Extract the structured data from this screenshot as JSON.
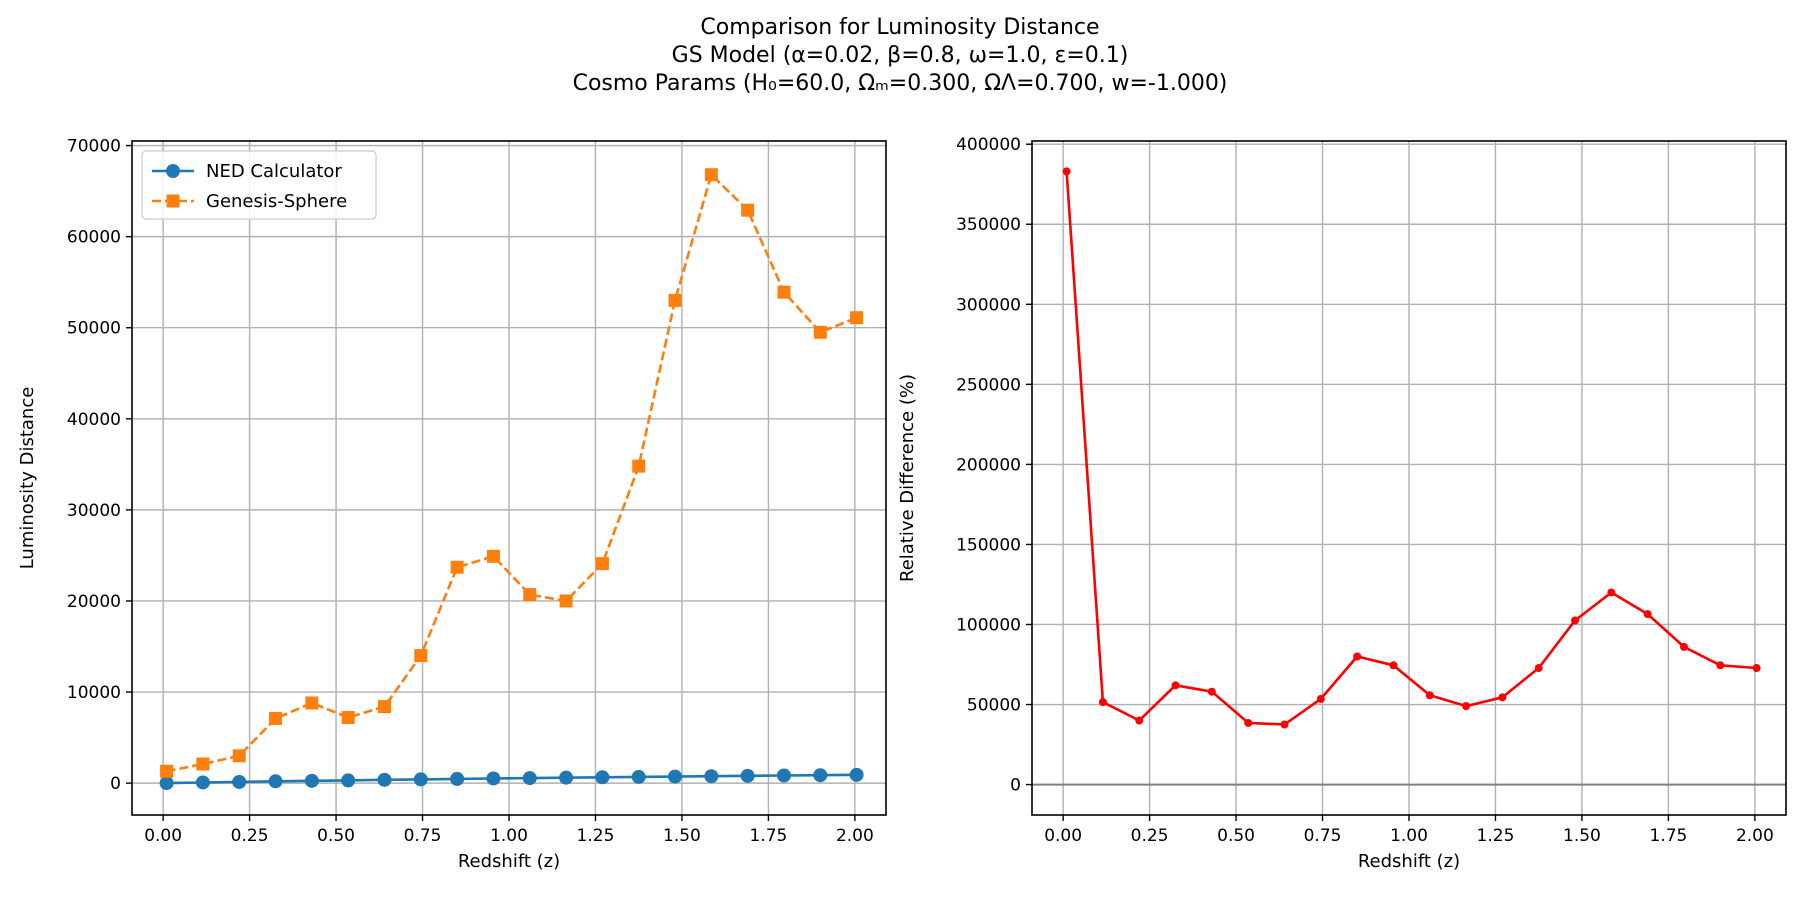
{
  "figure": {
    "title_lines": [
      "Comparison for Luminosity Distance",
      "GS Model (α=0.02, β=0.8, ω=1.0, ε=0.1)",
      "Cosmo Params (H₀=60.0, Ωₘ=0.300, ΩΛ=0.700, w=-1.000)"
    ]
  },
  "chart_data": [
    {
      "type": "line",
      "title": "",
      "xlabel": "Redshift (z)",
      "ylabel": "Luminosity Distance",
      "xlim": [
        -0.09,
        2.09
      ],
      "ylim": [
        -3500,
        70500
      ],
      "xticks": [
        0.0,
        0.25,
        0.5,
        0.75,
        1.0,
        1.25,
        1.5,
        1.75,
        2.0
      ],
      "xtick_labels": [
        "0.00",
        "0.25",
        "0.50",
        "0.75",
        "1.00",
        "1.25",
        "1.50",
        "1.75",
        "2.00"
      ],
      "yticks": [
        0,
        10000,
        20000,
        30000,
        40000,
        50000,
        60000,
        70000
      ],
      "ytick_labels": [
        "0",
        "10000",
        "20000",
        "30000",
        "40000",
        "50000",
        "60000",
        "70000"
      ],
      "grid": true,
      "legend": "upper-left",
      "x": [
        0.01,
        0.115,
        0.22,
        0.325,
        0.43,
        0.535,
        0.64,
        0.745,
        0.85,
        0.955,
        1.06,
        1.165,
        1.27,
        1.375,
        1.48,
        1.585,
        1.69,
        1.795,
        1.9,
        2.005
      ],
      "series": [
        {
          "name": "NED Calculator",
          "color": "#1f77b4",
          "marker": "circle",
          "linestyle": "solid",
          "values": [
            3,
            70,
            130,
            200,
            250,
            300,
            360,
            410,
            460,
            510,
            550,
            600,
            640,
            680,
            720,
            760,
            800,
            840,
            870,
            910
          ]
        },
        {
          "name": "Genesis-Sphere",
          "color": "#ff7f0e",
          "marker": "square",
          "linestyle": "dashed",
          "values": [
            1300,
            2100,
            3000,
            7100,
            8800,
            7200,
            8400,
            14000,
            23700,
            24900,
            20700,
            20000,
            24100,
            34800,
            53000,
            66800,
            62900,
            53900,
            49500,
            51100
          ]
        }
      ]
    },
    {
      "type": "line",
      "title": "",
      "xlabel": "Redshift (z)",
      "ylabel": "Relative Difference (%)",
      "xlim": [
        -0.09,
        2.09
      ],
      "ylim": [
        -19000,
        402000
      ],
      "xticks": [
        0.0,
        0.25,
        0.5,
        0.75,
        1.0,
        1.25,
        1.5,
        1.75,
        2.0
      ],
      "xtick_labels": [
        "0.00",
        "0.25",
        "0.50",
        "0.75",
        "1.00",
        "1.25",
        "1.50",
        "1.75",
        "2.00"
      ],
      "yticks": [
        0,
        50000,
        100000,
        150000,
        200000,
        250000,
        300000,
        350000,
        400000
      ],
      "ytick_labels": [
        "0",
        "50000",
        "100000",
        "150000",
        "200000",
        "250000",
        "300000",
        "350000",
        "400000"
      ],
      "grid": true,
      "reference_line_y": 0,
      "x": [
        0.01,
        0.115,
        0.22,
        0.325,
        0.43,
        0.535,
        0.64,
        0.745,
        0.85,
        0.955,
        1.06,
        1.165,
        1.27,
        1.375,
        1.48,
        1.585,
        1.69,
        1.795,
        1.9,
        2.005
      ],
      "series": [
        {
          "name": "",
          "color": "#ff0000",
          "marker": "small-circle",
          "linestyle": "solid",
          "values": [
            383000,
            51500,
            40000,
            62000,
            58000,
            38500,
            37500,
            53500,
            80000,
            74500,
            55800,
            49000,
            54500,
            72800,
            102500,
            120000,
            106500,
            86000,
            74500,
            72800
          ]
        }
      ]
    }
  ]
}
